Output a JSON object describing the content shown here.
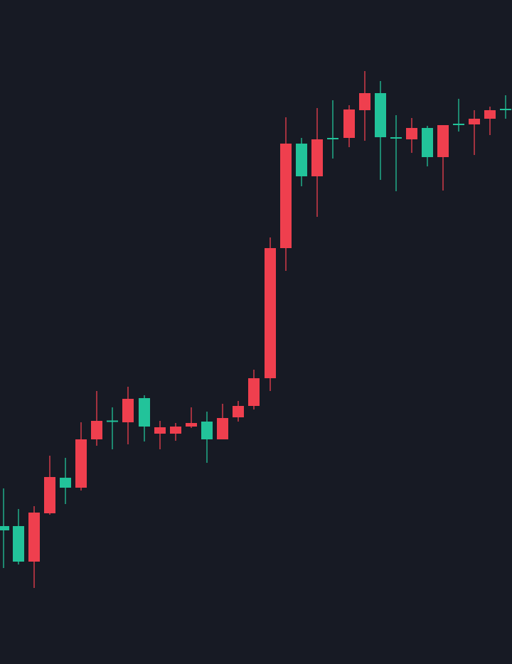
{
  "chart_data": {
    "type": "candlestick",
    "title": "",
    "xlabel": "",
    "ylabel": "",
    "grid": false,
    "axes_visible": false,
    "ylim": [
      0,
      934
    ],
    "colors": {
      "background": "#171a24",
      "up": "#22c39a",
      "down": "#ef3f4e"
    },
    "candles": [
      {
        "x": 5,
        "open": 188,
        "high": 247,
        "low": 135,
        "close": 194
      },
      {
        "x": 26,
        "open": 144,
        "high": 218,
        "low": 140,
        "close": 194
      },
      {
        "x": 48,
        "open": 213,
        "high": 222,
        "low": 107,
        "close": 144
      },
      {
        "x": 70,
        "open": 263,
        "high": 293,
        "low": 210,
        "close": 212
      },
      {
        "x": 92,
        "open": 248,
        "high": 290,
        "low": 225,
        "close": 262
      },
      {
        "x": 114,
        "open": 316,
        "high": 340,
        "low": 244,
        "close": 248
      },
      {
        "x": 136,
        "open": 342,
        "high": 384,
        "low": 307,
        "close": 316
      },
      {
        "x": 158,
        "open": 341,
        "high": 361,
        "low": 302,
        "close": 342
      },
      {
        "x": 180,
        "open": 373,
        "high": 390,
        "low": 309,
        "close": 340
      },
      {
        "x": 203,
        "open": 334,
        "high": 378,
        "low": 313,
        "close": 374
      },
      {
        "x": 225,
        "open": 333,
        "high": 342,
        "low": 302,
        "close": 324
      },
      {
        "x": 247,
        "open": 334,
        "high": 339,
        "low": 314,
        "close": 324
      },
      {
        "x": 269,
        "open": 339,
        "high": 361,
        "low": 332,
        "close": 334
      },
      {
        "x": 291,
        "open": 316,
        "high": 355,
        "low": 283,
        "close": 341
      },
      {
        "x": 313,
        "open": 346,
        "high": 366,
        "low": 316,
        "close": 316
      },
      {
        "x": 335,
        "open": 363,
        "high": 370,
        "low": 341,
        "close": 347
      },
      {
        "x": 357,
        "open": 402,
        "high": 414,
        "low": 358,
        "close": 363
      },
      {
        "x": 380,
        "open": 585,
        "high": 600,
        "low": 384,
        "close": 402
      },
      {
        "x": 402,
        "open": 732,
        "high": 769,
        "low": 553,
        "close": 585
      },
      {
        "x": 424,
        "open": 686,
        "high": 740,
        "low": 672,
        "close": 732
      },
      {
        "x": 446,
        "open": 738,
        "high": 782,
        "low": 629,
        "close": 686
      },
      {
        "x": 468,
        "open": 739,
        "high": 793,
        "low": 711,
        "close": 739
      },
      {
        "x": 491,
        "open": 780,
        "high": 786,
        "low": 727,
        "close": 740
      },
      {
        "x": 513,
        "open": 803,
        "high": 834,
        "low": 736,
        "close": 779
      },
      {
        "x": 535,
        "open": 741,
        "high": 820,
        "low": 681,
        "close": 803
      },
      {
        "x": 557,
        "open": 740,
        "high": 772,
        "low": 665,
        "close": 740
      },
      {
        "x": 579,
        "open": 754,
        "high": 768,
        "low": 719,
        "close": 738
      },
      {
        "x": 601,
        "open": 713,
        "high": 757,
        "low": 700,
        "close": 754
      },
      {
        "x": 623,
        "open": 758,
        "high": 758,
        "low": 666,
        "close": 713
      },
      {
        "x": 645,
        "open": 759,
        "high": 795,
        "low": 749,
        "close": 759
      },
      {
        "x": 667,
        "open": 767,
        "high": 779,
        "low": 716,
        "close": 759
      },
      {
        "x": 689,
        "open": 779,
        "high": 784,
        "low": 744,
        "close": 767
      },
      {
        "x": 711,
        "open": 780,
        "high": 800,
        "low": 767,
        "close": 780
      }
    ]
  }
}
